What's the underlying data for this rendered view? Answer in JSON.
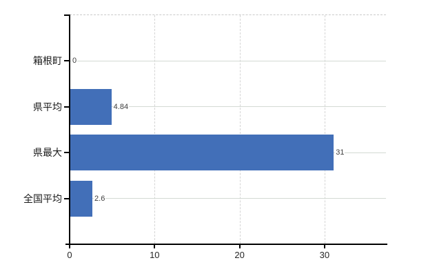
{
  "chart_data": {
    "type": "bar",
    "orientation": "horizontal",
    "title": "",
    "xlabel": "",
    "ylabel": "",
    "categories": [
      "箱根町",
      "県平均",
      "県最大",
      "全国平均"
    ],
    "values": [
      0,
      4.84,
      31,
      2.6
    ],
    "value_labels": [
      "0",
      "4.84",
      "31",
      "2.6"
    ],
    "x_ticks": [
      0,
      10,
      20,
      30
    ],
    "x_tick_labels": [
      "0",
      "10",
      "20",
      "30"
    ],
    "xlim": [
      0,
      37.2
    ],
    "grid": true,
    "legend": false,
    "colors": {
      "bar": "#426fb8",
      "vertical_grid": "#d4d4d4",
      "row_grid": "#d3dad3",
      "axis": "#000000",
      "category_label": "#1a1a1a",
      "value_label": "#3d3d3d",
      "background": "#ffffff"
    }
  }
}
